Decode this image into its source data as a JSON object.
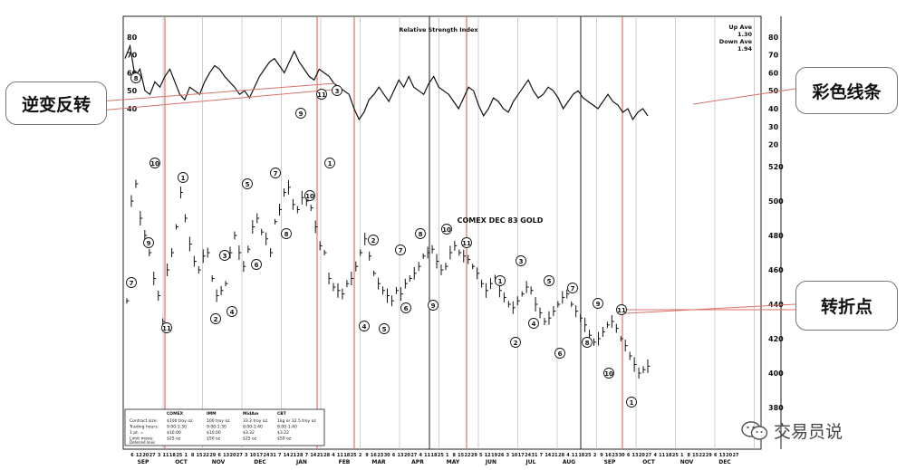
{
  "chart_data": {
    "type": "line",
    "panels": [
      {
        "name": "rsi",
        "title": "Relative Strength Index",
        "ylim": [
          10,
          90
        ],
        "yticks": [
          80,
          70,
          60,
          50,
          40,
          30,
          20
        ],
        "left_ticks": [
          "80",
          "70",
          "60",
          "50",
          "40"
        ],
        "legend": {
          "line1": "Up Ave",
          "line2": "1.30",
          "line3": "Down Ave",
          "line4": "1.94"
        },
        "reference_lines": [
          70,
          30
        ],
        "series": [
          {
            "x_week": [
              0,
              2,
              4,
              6,
              8,
              10,
              12,
              14,
              16,
              18,
              20,
              22,
              24,
              26,
              28,
              30,
              32,
              34,
              36,
              38,
              40,
              42,
              44,
              46,
              48,
              50,
              52,
              54,
              56,
              58,
              60,
              62,
              64,
              66,
              68,
              70,
              72,
              74,
              76,
              78,
              80,
              82,
              84,
              86,
              88,
              90,
              92,
              94,
              96,
              98,
              100,
              102,
              104,
              106,
              108,
              110,
              112,
              114,
              116,
              118,
              120,
              122,
              124,
              126,
              128,
              130,
              132,
              134,
              136,
              138,
              140,
              142,
              144,
              146,
              148,
              150,
              152,
              154,
              156,
              158,
              160,
              162,
              164,
              166,
              168,
              170,
              172,
              174,
              176,
              178,
              180,
              182,
              184,
              186,
              188,
              190,
              192,
              194,
              196,
              198,
              200,
              202,
              204,
              206,
              208,
              210
            ],
            "values": [
              68,
              75,
              58,
              62,
              50,
              48,
              55,
              52,
              58,
              62,
              55,
              48,
              45,
              52,
              50,
              48,
              55,
              60,
              64,
              62,
              58,
              55,
              52,
              48,
              50,
              46,
              52,
              58,
              62,
              66,
              68,
              64,
              60,
              66,
              72,
              66,
              62,
              58,
              56,
              62,
              60,
              58,
              54,
              52,
              50,
              48,
              40,
              34,
              38,
              45,
              48,
              52,
              48,
              44,
              50,
              56,
              52,
              58,
              52,
              50,
              48,
              54,
              58,
              52,
              50,
              48,
              44,
              40,
              46,
              52,
              50,
              42,
              36,
              40,
              46,
              44,
              40,
              38,
              44,
              48,
              52,
              56,
              50,
              46,
              48,
              52,
              50,
              46,
              40,
              44,
              48,
              50,
              46,
              44,
              42,
              40,
              44,
              48,
              44,
              42,
              38,
              40,
              34,
              38,
              40,
              36
            ]
          }
        ]
      },
      {
        "name": "price",
        "title": "COMEX DEC 83 GOLD",
        "ylim": [
          370,
          530
        ],
        "yticks": [
          520,
          500,
          480,
          460,
          440,
          420,
          400,
          380
        ],
        "series": [
          {
            "name": "",
            "values": [
              442,
              500,
              510,
              490,
              480,
              470,
              455,
              445,
              430,
              460,
              470,
              485,
              505,
              490,
              475,
              465,
              460,
              468,
              470,
              455,
              445,
              448,
              452,
              470,
              480,
              470,
              462,
              472,
              485,
              490,
              482,
              478,
              470,
              488,
              495,
              505,
              508,
              498,
              495,
              502,
              500,
              496,
              485,
              474,
              470,
              455,
              450,
              448,
              446,
              452,
              455,
              462,
              470,
              478,
              468,
              458,
              452,
              448,
              445,
              442,
              448,
              446,
              452,
              455,
              458,
              462,
              468,
              470,
              472,
              465,
              460,
              462,
              470,
              474,
              470,
              468,
              466,
              462,
              458,
              452,
              448,
              452,
              455,
              448,
              444,
              440,
              438,
              442,
              446,
              450,
              448,
              440,
              435,
              430,
              432,
              436,
              440,
              444,
              446,
              440,
              436,
              432,
              428,
              422,
              418,
              420,
              424,
              428,
              430,
              426,
              420,
              416,
              410,
              405,
              400,
              402,
              404
            ]
          }
        ]
      }
    ],
    "xlabels_days": [
      "6",
      "12",
      "20",
      "27",
      "3",
      "11",
      "18",
      "25",
      "1",
      "8",
      "15",
      "22",
      "29",
      "6",
      "13",
      "20",
      "27",
      "3",
      "10",
      "17",
      "24",
      "31",
      "7",
      "14",
      "21",
      "28",
      "7",
      "14",
      "21",
      "28",
      "4",
      "11",
      "18",
      "25",
      "2",
      "9",
      "16",
      "23",
      "30",
      "6",
      "13",
      "20",
      "27",
      "4",
      "11",
      "18",
      "25",
      "1",
      "8",
      "15",
      "22",
      "29",
      "5",
      "12",
      "19",
      "26",
      "3",
      "10",
      "17",
      "24",
      "31",
      "7",
      "14",
      "21",
      "28",
      "4",
      "11",
      "18",
      "25",
      "2",
      "9",
      "16",
      "23",
      "30",
      "6",
      "13",
      "20",
      "27",
      "4",
      "11",
      "18",
      "25",
      "1",
      "8",
      "15",
      "22",
      "29",
      "6",
      "13",
      "20",
      "27"
    ],
    "xlabels_months": [
      "SEP",
      "OCT",
      "NOV",
      "DEC",
      "JAN",
      "FEB",
      "MAR",
      "APR",
      "MAY",
      "JUN",
      "JUL",
      "AUG",
      "SEP",
      "OCT",
      "NOV",
      "DEC"
    ],
    "wave_labels_circled": [
      "8",
      "10",
      "9",
      "7",
      "11",
      "1",
      "3",
      "2",
      "4",
      "5",
      "6",
      "7",
      "8",
      "9",
      "10",
      "11",
      "1",
      "3",
      "2",
      "4",
      "5",
      "7",
      "6",
      "8",
      "9",
      "10",
      "11",
      "1",
      "3",
      "2",
      "5",
      "4",
      "7",
      "6",
      "8",
      "9",
      "10",
      "11",
      "1"
    ],
    "info_box": {
      "rows": [
        "Contract size:",
        "Trading hours:",
        "1 pt. =",
        "Limit move:"
      ],
      "columns": [
        {
          "head": "COMEX",
          "lines": [
            "$100 troy oz.",
            "9:00-1:30",
            "$10.00",
            "$25 oz"
          ]
        },
        {
          "head": "IMM",
          "lines": [
            "100 troy oz.",
            "9:00-1:30",
            "$10.00",
            "$50 oz"
          ]
        },
        {
          "head": "MidAm",
          "lines": [
            "33.2 troy oz.",
            "8:00-1:40",
            "$3.32",
            "$25 oz"
          ]
        },
        {
          "head": "CBT",
          "lines": [
            "1kg or 32.5 troy oz",
            "8:00-1:40",
            "$3.22",
            "$50 oz"
          ]
        }
      ],
      "footer": "Deferred lines"
    }
  },
  "callouts": {
    "left": "逆变反转",
    "right_top": "彩色线条",
    "right_bottom": "转折点"
  },
  "watermark": "交易员说",
  "colors": {
    "grid": "#bbbbbb",
    "red": "#d9736a",
    "black": "#111111"
  }
}
